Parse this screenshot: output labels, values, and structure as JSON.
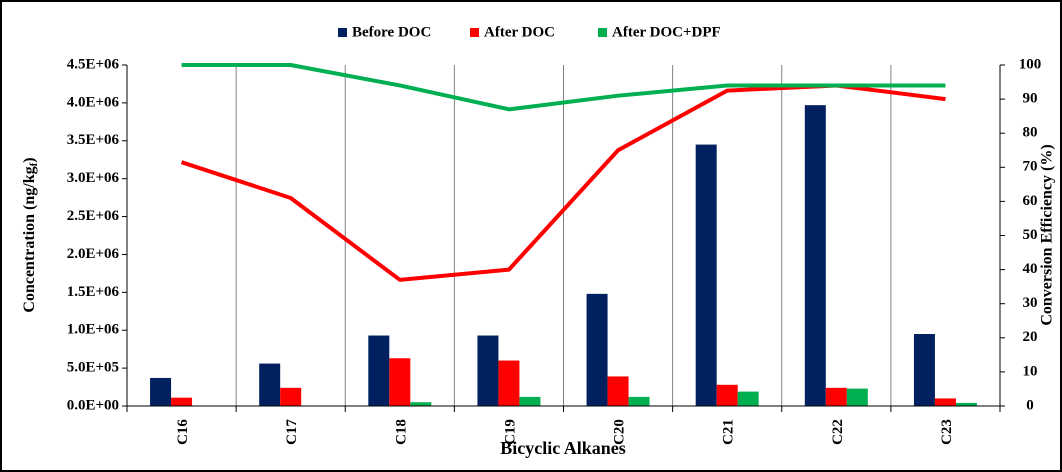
{
  "chart_data": {
    "type": "bar",
    "xlabel": "Bicyclic Alkanes",
    "ylabel": [
      "Concentration (ng/kg",
      "f",
      ")"
    ],
    "y2label": "Conversion Efficiency (%)",
    "categories": [
      "C16",
      "C17",
      "C18",
      "C19",
      "C20",
      "C21",
      "C22",
      "C23"
    ],
    "series": [
      {
        "name": "Before DOC",
        "color": "#002060",
        "values": [
          370000,
          560000,
          930000,
          930000,
          1480000,
          3450000,
          3970000,
          950000
        ]
      },
      {
        "name": "After DOC",
        "color": "#ff0000",
        "values": [
          110000,
          240000,
          630000,
          600000,
          390000,
          280000,
          240000,
          100000
        ],
        "efficiency": [
          71.5,
          61,
          37,
          40,
          75,
          92.5,
          94,
          90
        ]
      },
      {
        "name": "After DOC+DPF",
        "color": "#00b050",
        "values": [
          0,
          0,
          50000,
          120000,
          120000,
          190000,
          230000,
          40000
        ],
        "efficiency": [
          100,
          100,
          94,
          87,
          91,
          94,
          94,
          94
        ]
      }
    ],
    "ylim": [
      0,
      4500000
    ],
    "yticks": [
      {
        "value": 0,
        "label": "0.0E+00"
      },
      {
        "value": 500000,
        "label": "5.0E+05"
      },
      {
        "value": 1000000,
        "label": "1.0E+06"
      },
      {
        "value": 1500000,
        "label": "1.5E+06"
      },
      {
        "value": 2000000,
        "label": "2.0E+06"
      },
      {
        "value": 2500000,
        "label": "2.5E+06"
      },
      {
        "value": 3000000,
        "label": "3.0E+06"
      },
      {
        "value": 3500000,
        "label": "3.5E+06"
      },
      {
        "value": 4000000,
        "label": "4.0E+06"
      },
      {
        "value": 4500000,
        "label": "4.5E+06"
      }
    ],
    "y2lim": [
      0,
      100
    ],
    "y2ticks": [
      0,
      10,
      20,
      30,
      40,
      50,
      60,
      70,
      80,
      90,
      100
    ],
    "legend": "top"
  }
}
